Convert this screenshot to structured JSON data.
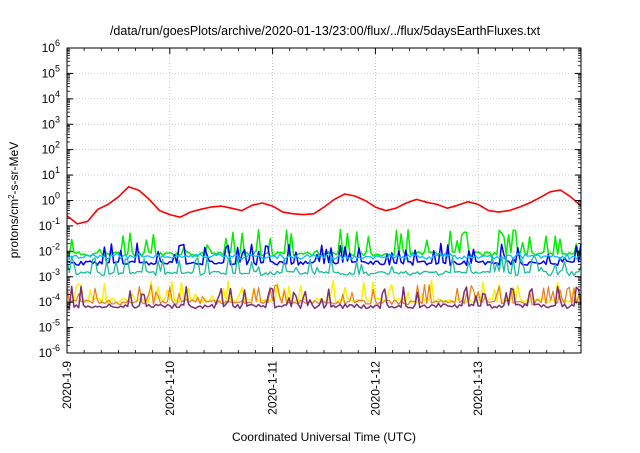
{
  "chart_data": {
    "type": "line",
    "title": "/data/run/goesPlots/archive/2020-01-13/23:00/flux/../flux/5daysEarthFluxes.txt",
    "xlabel": "Coordinated Universal Time (UTC)",
    "ylabel_main": "protons/cm",
    "ylabel_sup": "2",
    "ylabel_rest": "-s-sr-MeV",
    "x_unit": "days since 2020-01-09 00:00 UTC",
    "xlim": [
      0,
      5
    ],
    "x_ticks": [
      {
        "x": 0,
        "label": "2020-1-9"
      },
      {
        "x": 1,
        "label": "2020-1-10"
      },
      {
        "x": 2,
        "label": "2020-1-11"
      },
      {
        "x": 3,
        "label": "2020-1-12"
      },
      {
        "x": 4,
        "label": "2020-1-13"
      }
    ],
    "y_scale": "log",
    "ylim_exp": [
      -6,
      6
    ],
    "y_tick_exponents": [
      -6,
      -5,
      -4,
      -3,
      -2,
      -1,
      0,
      1,
      2,
      3,
      4,
      5,
      6
    ],
    "grid": true,
    "series": [
      {
        "color": "#ff0000",
        "width": 1.6,
        "points": [
          [
            0.0,
            0.25
          ],
          [
            0.1,
            0.12
          ],
          [
            0.2,
            0.15
          ],
          [
            0.3,
            0.45
          ],
          [
            0.4,
            0.7
          ],
          [
            0.5,
            1.4
          ],
          [
            0.6,
            3.5
          ],
          [
            0.7,
            2.5
          ],
          [
            0.8,
            1.1
          ],
          [
            0.9,
            0.4
          ],
          [
            1.0,
            0.28
          ],
          [
            1.1,
            0.22
          ],
          [
            1.2,
            0.35
          ],
          [
            1.3,
            0.45
          ],
          [
            1.4,
            0.55
          ],
          [
            1.5,
            0.6
          ],
          [
            1.6,
            0.5
          ],
          [
            1.7,
            0.4
          ],
          [
            1.8,
            0.65
          ],
          [
            1.9,
            0.8
          ],
          [
            2.0,
            0.6
          ],
          [
            2.1,
            0.35
          ],
          [
            2.2,
            0.3
          ],
          [
            2.3,
            0.28
          ],
          [
            2.4,
            0.3
          ],
          [
            2.5,
            0.55
          ],
          [
            2.6,
            1.1
          ],
          [
            2.7,
            1.8
          ],
          [
            2.8,
            1.5
          ],
          [
            2.9,
            1.0
          ],
          [
            3.0,
            0.55
          ],
          [
            3.1,
            0.4
          ],
          [
            3.2,
            0.5
          ],
          [
            3.3,
            0.8
          ],
          [
            3.4,
            1.1
          ],
          [
            3.5,
            0.85
          ],
          [
            3.6,
            0.7
          ],
          [
            3.7,
            0.5
          ],
          [
            3.8,
            0.65
          ],
          [
            3.9,
            0.9
          ],
          [
            4.0,
            0.7
          ],
          [
            4.1,
            0.4
          ],
          [
            4.2,
            0.35
          ],
          [
            4.3,
            0.4
          ],
          [
            4.4,
            0.55
          ],
          [
            4.5,
            0.8
          ],
          [
            4.6,
            1.3
          ],
          [
            4.7,
            2.2
          ],
          [
            4.8,
            2.6
          ],
          [
            4.9,
            1.4
          ],
          [
            5.0,
            0.6
          ]
        ]
      },
      {
        "color": "#00ee00",
        "width": 1.5,
        "base": 0.008,
        "amp": 9,
        "seed": 11
      },
      {
        "color": "#0000ff",
        "width": 1.5,
        "base": 0.0035,
        "amp": 6,
        "seed": 23
      },
      {
        "color": "#00bfff",
        "width": 1.3,
        "base": 0.006,
        "amp": 1.4,
        "seed": 37
      },
      {
        "color": "#1abc9c",
        "width": 1.3,
        "base": 0.0014,
        "amp": 5,
        "seed": 41
      },
      {
        "color": "#ffee00",
        "width": 1.5,
        "base": 0.00012,
        "amp": 6,
        "seed": 53
      },
      {
        "color": "#e67e22",
        "width": 1.2,
        "base": 0.0001,
        "amp": 5,
        "seed": 61
      },
      {
        "color": "#7b2d7b",
        "width": 1.5,
        "base": 7e-05,
        "amp": 6,
        "seed": 71
      }
    ]
  }
}
